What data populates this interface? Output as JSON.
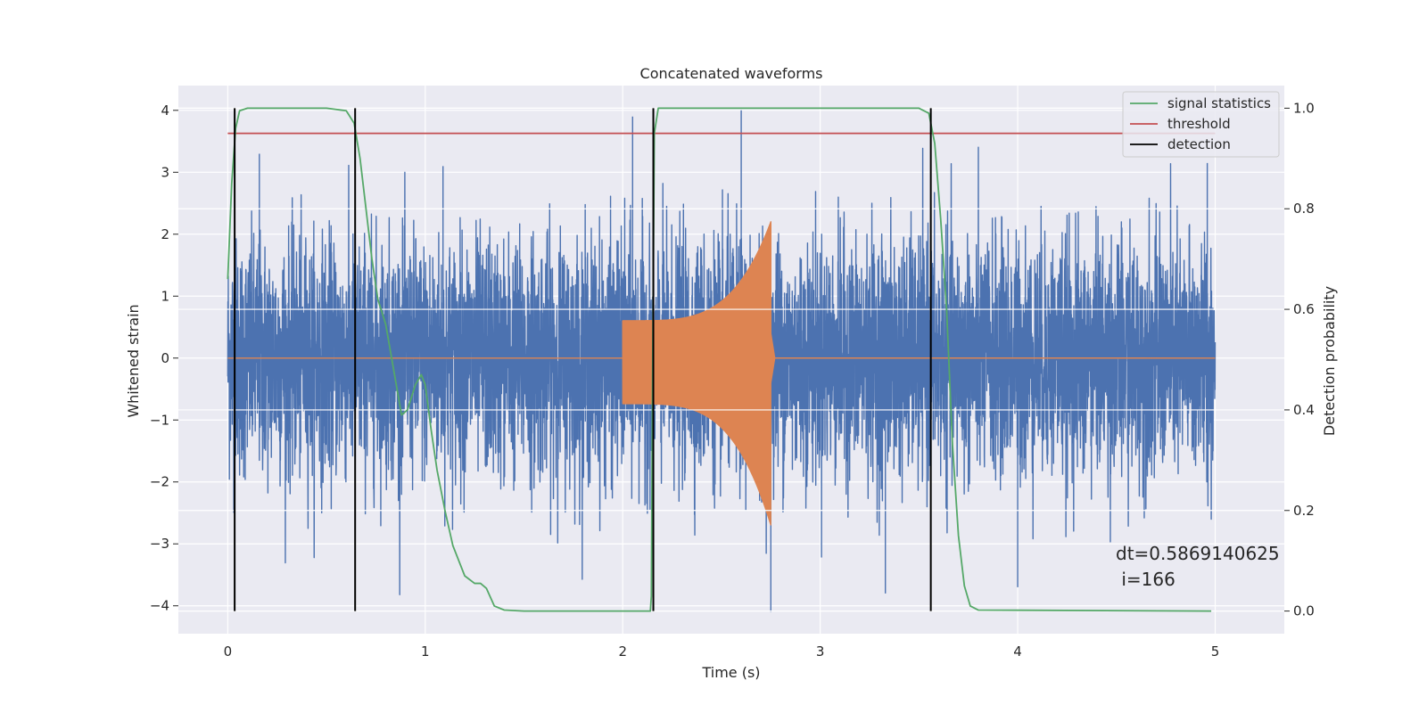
{
  "chart_data": {
    "type": "line",
    "title": "Concatenated waveforms",
    "xlabel": "Time (s)",
    "ylabel": "Whitened strain",
    "ylabel_right": "Detection probability",
    "xlim": [
      -0.25,
      5.35
    ],
    "ylim": [
      -4.45,
      4.4
    ],
    "ylim_right": [
      -0.045,
      1.045
    ],
    "x_ticks": [
      0,
      1,
      2,
      3,
      4,
      5
    ],
    "y_ticks": [
      4,
      3,
      2,
      1,
      0,
      -1,
      -2,
      -3,
      -4
    ],
    "y_tick_labels": [
      "4",
      "3",
      "2",
      "1",
      "0",
      "−1",
      "−2",
      "−3",
      "−4"
    ],
    "y_right_ticks": [
      1.0,
      0.8,
      0.6,
      0.4,
      0.2,
      0.0
    ],
    "y_right_tick_labels": [
      "1.0",
      "0.8",
      "0.6",
      "0.4",
      "0.2",
      "0.0"
    ],
    "grid": true,
    "legend_position": "top-right",
    "series": [
      {
        "name": "",
        "kind": "whitened-strain-noise",
        "color": "#4c72b0",
        "x_range": [
          0,
          5
        ],
        "approx_extremes": {
          "max": 4.0,
          "min": -4.1
        },
        "sample_peaks": [
          {
            "x": 0.16,
            "y": 3.3
          },
          {
            "x": 1.09,
            "y": 3.1
          },
          {
            "x": 2.05,
            "y": 3.9
          },
          {
            "x": 2.6,
            "y": 4.0
          },
          {
            "x": 2.75,
            "y": -4.1
          },
          {
            "x": 3.33,
            "y": -3.8
          },
          {
            "x": 4.0,
            "y": -3.7
          },
          {
            "x": 4.96,
            "y": 3.15
          }
        ]
      },
      {
        "name": "",
        "kind": "injected-chirp",
        "color": "#dd8452",
        "x_range": [
          0,
          5
        ],
        "chirp_start": 2.0,
        "chirp_merger": 2.75,
        "start_amplitude": 0.6,
        "peak_max": 2.2,
        "peak_min": -2.7
      },
      {
        "name": "signal statistics",
        "axis": "right",
        "color": "#55a868",
        "points": [
          [
            0,
            0.66
          ],
          [
            0.02,
            0.85
          ],
          [
            0.04,
            0.96
          ],
          [
            0.06,
            0.995
          ],
          [
            0.1,
            1.0
          ],
          [
            0.5,
            1.0
          ],
          [
            0.6,
            0.995
          ],
          [
            0.64,
            0.97
          ],
          [
            0.67,
            0.9
          ],
          [
            0.7,
            0.8
          ],
          [
            0.73,
            0.7
          ],
          [
            0.76,
            0.62
          ],
          [
            0.8,
            0.57
          ],
          [
            0.84,
            0.48
          ],
          [
            0.88,
            0.39
          ],
          [
            0.91,
            0.4
          ],
          [
            0.95,
            0.45
          ],
          [
            0.98,
            0.47
          ],
          [
            1.0,
            0.45
          ],
          [
            1.03,
            0.36
          ],
          [
            1.06,
            0.28
          ],
          [
            1.1,
            0.2
          ],
          [
            1.14,
            0.13
          ],
          [
            1.2,
            0.07
          ],
          [
            1.25,
            0.055
          ],
          [
            1.28,
            0.055
          ],
          [
            1.31,
            0.045
          ],
          [
            1.35,
            0.01
          ],
          [
            1.4,
            0.002
          ],
          [
            1.5,
            0.0
          ],
          [
            2.14,
            0.0
          ],
          [
            2.145,
            0.03
          ],
          [
            2.15,
            0.4
          ],
          [
            2.16,
            0.95
          ],
          [
            2.18,
            1.0
          ],
          [
            3.5,
            1.0
          ],
          [
            3.55,
            0.99
          ],
          [
            3.58,
            0.93
          ],
          [
            3.61,
            0.78
          ],
          [
            3.64,
            0.6
          ],
          [
            3.67,
            0.33
          ],
          [
            3.7,
            0.15
          ],
          [
            3.73,
            0.05
          ],
          [
            3.76,
            0.01
          ],
          [
            3.8,
            0.002
          ],
          [
            4.98,
            0.0
          ]
        ]
      },
      {
        "name": "threshold",
        "axis": "right",
        "color": "#c44e52",
        "value": 0.95,
        "x_range": [
          0,
          5
        ]
      },
      {
        "name": "detection",
        "axis": "right",
        "color": "#000000",
        "x_values": [
          0.035,
          0.645,
          2.155,
          3.56
        ],
        "y_range": [
          0.0,
          1.0
        ]
      }
    ],
    "annotations": [
      {
        "text": "dt=0.5869140625",
        "x": 4.5,
        "y": -3.1
      },
      {
        "text": " i=166",
        "x": 4.5,
        "y": -3.5
      }
    ]
  },
  "colors": {
    "plot_background": "#eaeaf2",
    "grid": "#ffffff",
    "text": "#262626"
  }
}
